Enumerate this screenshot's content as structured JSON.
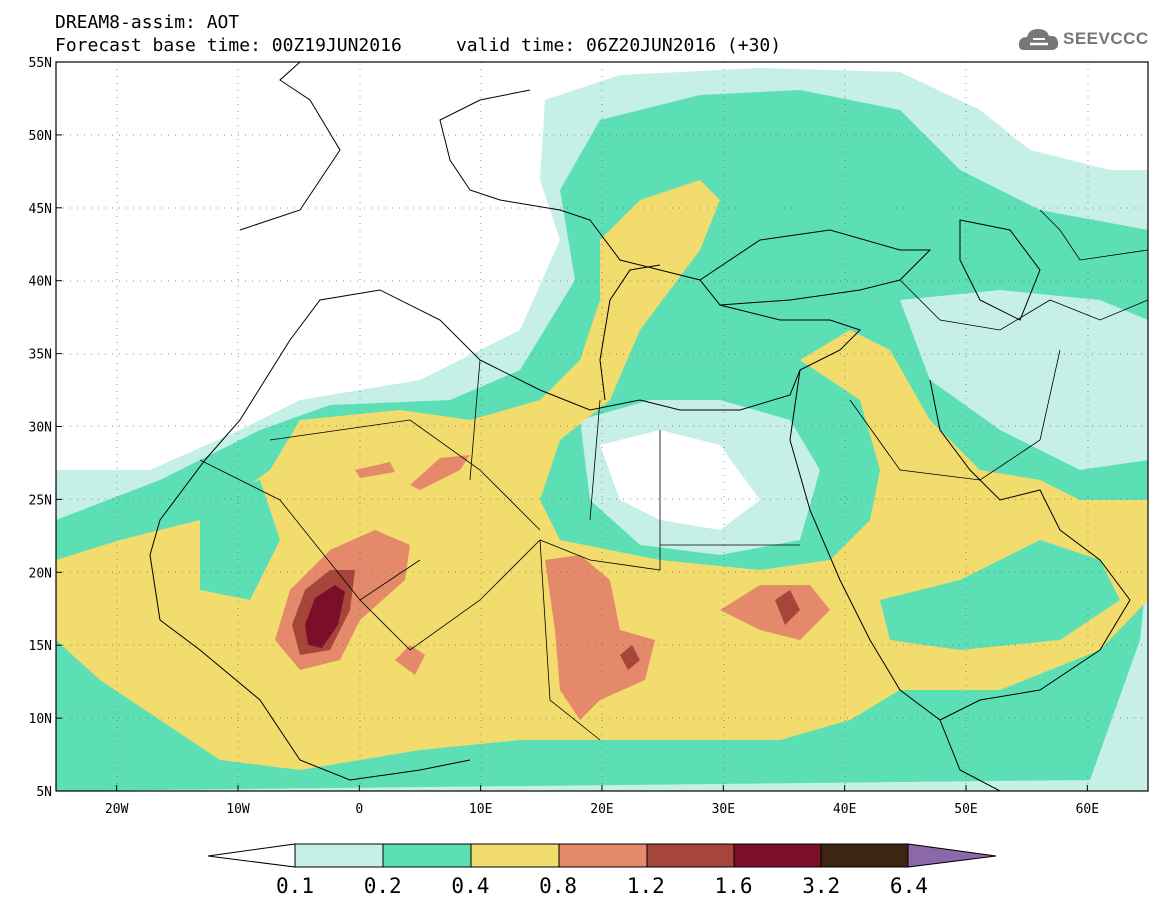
{
  "header": {
    "title_line1": "DREAM8-assim: AOT",
    "title_line2": "Forecast base time: 00Z19JUN2016     valid time: 06Z20JUN2016 (+30)",
    "logo_text": "SEEVCCC"
  },
  "map": {
    "lon_range": [
      -25,
      65
    ],
    "lat_range": [
      5,
      55
    ],
    "lon_ticks": [
      {
        "value": -20,
        "label": "20W"
      },
      {
        "value": -10,
        "label": "10W"
      },
      {
        "value": 0,
        "label": "0"
      },
      {
        "value": 10,
        "label": "10E"
      },
      {
        "value": 20,
        "label": "20E"
      },
      {
        "value": 30,
        "label": "30E"
      },
      {
        "value": 40,
        "label": "40E"
      },
      {
        "value": 50,
        "label": "50E"
      },
      {
        "value": 60,
        "label": "60E"
      }
    ],
    "lat_ticks": [
      {
        "value": 5,
        "label": "5N"
      },
      {
        "value": 10,
        "label": "10N"
      },
      {
        "value": 15,
        "label": "15N"
      },
      {
        "value": 20,
        "label": "20N"
      },
      {
        "value": 25,
        "label": "25N"
      },
      {
        "value": 30,
        "label": "30N"
      },
      {
        "value": 35,
        "label": "35N"
      },
      {
        "value": 40,
        "label": "40N"
      },
      {
        "value": 45,
        "label": "45N"
      },
      {
        "value": 50,
        "label": "50N"
      },
      {
        "value": 55,
        "label": "55N"
      }
    ],
    "grid": true
  },
  "colorbar": {
    "labels": [
      "0.1",
      "0.2",
      "0.4",
      "0.8",
      "1.2",
      "1.6",
      "3.2",
      "6.4"
    ],
    "colors": [
      "#ffffff",
      "#c6efe8",
      "#5ddfb5",
      "#f2dc6e",
      "#e48a6a",
      "#a6463b",
      "#7b0f2a",
      "#3d2512",
      "#8c68aa"
    ]
  }
}
